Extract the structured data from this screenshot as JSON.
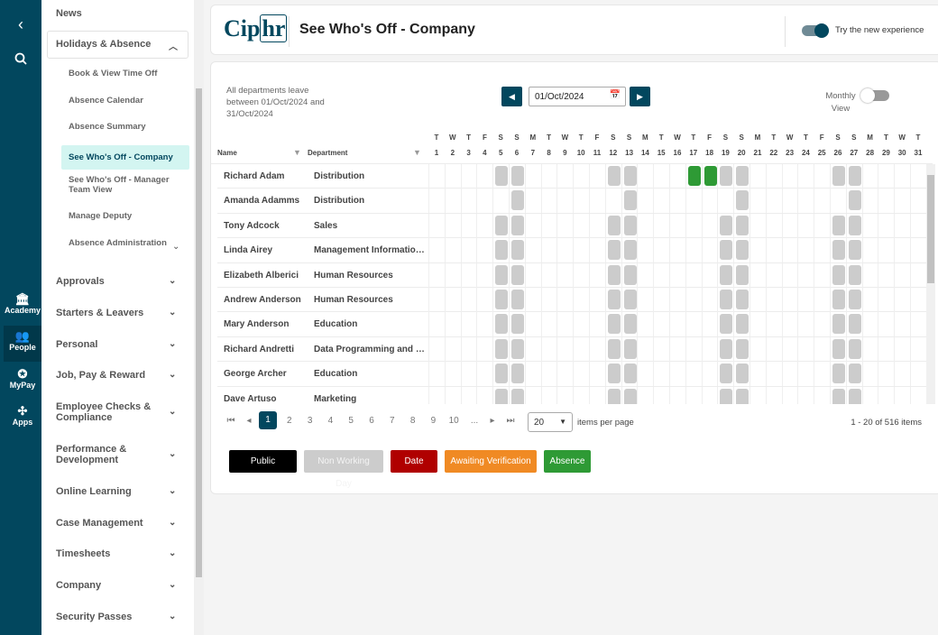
{
  "rail": {
    "collapse": "‹",
    "items": [
      {
        "label": "Academy",
        "icon": "building-icon"
      },
      {
        "label": "People",
        "icon": "people-icon",
        "active": true
      },
      {
        "label": "MyPay",
        "icon": "money-bag-icon"
      },
      {
        "label": "Apps",
        "icon": "apps-icon"
      }
    ]
  },
  "sidebar": {
    "top_item": "News",
    "group": "Holidays & Absence",
    "subitems": [
      "Book & View Time Off",
      "Absence Calendar",
      "Absence Summary",
      "See Who's Off - Company",
      "See Who's Off - Manager Team View",
      "Manage Deputy",
      "Absence Administration"
    ],
    "active_sub": 3,
    "items": [
      "Approvals",
      "Starters & Leavers",
      "Personal",
      "Job, Pay & Reward",
      "Employee Checks & Compliance",
      "Performance & Development",
      "Online Learning",
      "Case Management",
      "Timesheets",
      "Company",
      "Security Passes"
    ]
  },
  "header": {
    "logo": "Ciphr",
    "title": "See Who's Off - Company",
    "toggle_label": "Try the new experience",
    "toggle_on": true
  },
  "filters": {
    "summary": "All departments leave between 01/Oct/2024 and 31/Oct/2024",
    "date": "01/Oct/2024",
    "monthly_label": "Monthly View",
    "monthly_on": false
  },
  "grid": {
    "col_name": "Name",
    "col_department": "Department",
    "weekdays": [
      "T",
      "W",
      "T",
      "F",
      "S",
      "S",
      "M",
      "T",
      "W",
      "T",
      "F",
      "S",
      "S",
      "M",
      "T",
      "W",
      "T",
      "F",
      "S",
      "S",
      "M",
      "T",
      "W",
      "T",
      "F",
      "S",
      "S",
      "M",
      "T",
      "W",
      "T"
    ],
    "days": [
      1,
      2,
      3,
      4,
      5,
      6,
      7,
      8,
      9,
      10,
      11,
      12,
      13,
      14,
      15,
      16,
      17,
      18,
      19,
      20,
      21,
      22,
      23,
      24,
      25,
      26,
      27,
      28,
      29,
      30,
      31
    ],
    "rows": [
      {
        "name": "Richard Adam",
        "department": "Distribution",
        "non_working": [
          5,
          6,
          12,
          13,
          19,
          20,
          26,
          27
        ],
        "absence": [
          17,
          18
        ]
      },
      {
        "name": "Amanda Adamms",
        "department": "Distribution",
        "non_working": [
          6,
          13,
          20,
          27
        ],
        "absence": []
      },
      {
        "name": "Tony Adcock",
        "department": "Sales",
        "non_working": [
          5,
          6,
          12,
          13,
          19,
          20,
          26,
          27
        ],
        "absence": []
      },
      {
        "name": "Linda Airey",
        "department": "Management Information...",
        "non_working": [
          5,
          6,
          12,
          13,
          19,
          20,
          26,
          27
        ],
        "absence": []
      },
      {
        "name": "Elizabeth Alberici",
        "department": "Human Resources",
        "non_working": [
          5,
          6,
          12,
          13,
          19,
          20,
          26,
          27
        ],
        "absence": []
      },
      {
        "name": "Andrew Anderson",
        "department": "Human Resources",
        "non_working": [
          5,
          6,
          12,
          13,
          19,
          20,
          26,
          27
        ],
        "absence": []
      },
      {
        "name": "Mary Anderson",
        "department": "Education",
        "non_working": [
          5,
          6,
          12,
          13,
          19,
          20,
          26,
          27
        ],
        "absence": []
      },
      {
        "name": "Richard Andretti",
        "department": "Data Programming and S...",
        "non_working": [
          5,
          6,
          12,
          13,
          19,
          20,
          26,
          27
        ],
        "absence": []
      },
      {
        "name": "George Archer",
        "department": "Education",
        "non_working": [
          5,
          6,
          12,
          13,
          19,
          20,
          26,
          27
        ],
        "absence": []
      },
      {
        "name": "Dave Artuso",
        "department": "Marketing",
        "non_working": [
          5,
          6,
          12,
          13,
          19,
          20,
          26,
          27
        ],
        "absence": []
      }
    ]
  },
  "pager": {
    "pages": [
      "1",
      "2",
      "3",
      "4",
      "5",
      "6",
      "7",
      "8",
      "9",
      "10",
      "..."
    ],
    "current": "1",
    "page_size": "20",
    "per_page_label": "items per page",
    "summary": "1 - 20 of 516 items"
  },
  "legend": [
    {
      "label": "Public Holiday",
      "color": "#000000",
      "text": "#ffffff"
    },
    {
      "label": "Non Working Day",
      "color": "#cccccc",
      "text": "#f4f4f4"
    },
    {
      "label": "Date Left",
      "color": "#b00000",
      "text": "#ffffff"
    },
    {
      "label": "Awaiting Verification",
      "color": "#f08a24",
      "text": "#ffffff"
    },
    {
      "label": "Absence",
      "color": "#2e9a35",
      "text": "#ffffff"
    }
  ],
  "colors": {
    "brand": "#02475e",
    "non_working": "#cccccc",
    "absence": "#2e9a35"
  }
}
